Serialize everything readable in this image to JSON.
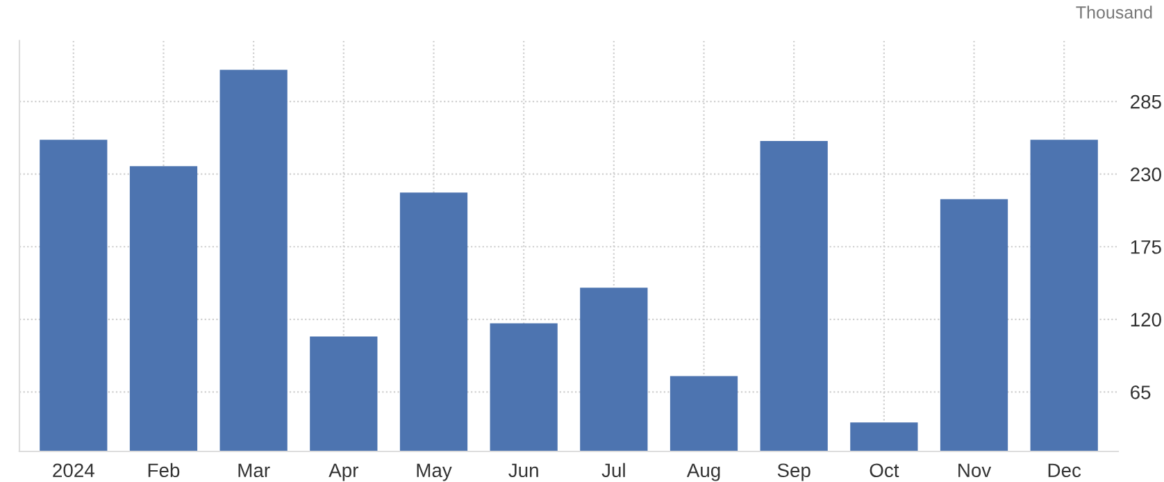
{
  "chart_data": {
    "type": "bar",
    "ylabel": "Thousand",
    "categories": [
      "2024",
      "Feb",
      "Mar",
      "Apr",
      "May",
      "Jun",
      "Jul",
      "Aug",
      "Sep",
      "Oct",
      "Nov",
      "Dec"
    ],
    "series": [
      {
        "color": "#4d74b0",
        "values": [
          256,
          236,
          309,
          107,
          216,
          117,
          144,
          77,
          255,
          42,
          211,
          256
        ]
      }
    ],
    "ylim": [
      20,
      331
    ],
    "yticks": [
      65,
      120,
      175,
      230,
      285
    ],
    "grid": true
  }
}
